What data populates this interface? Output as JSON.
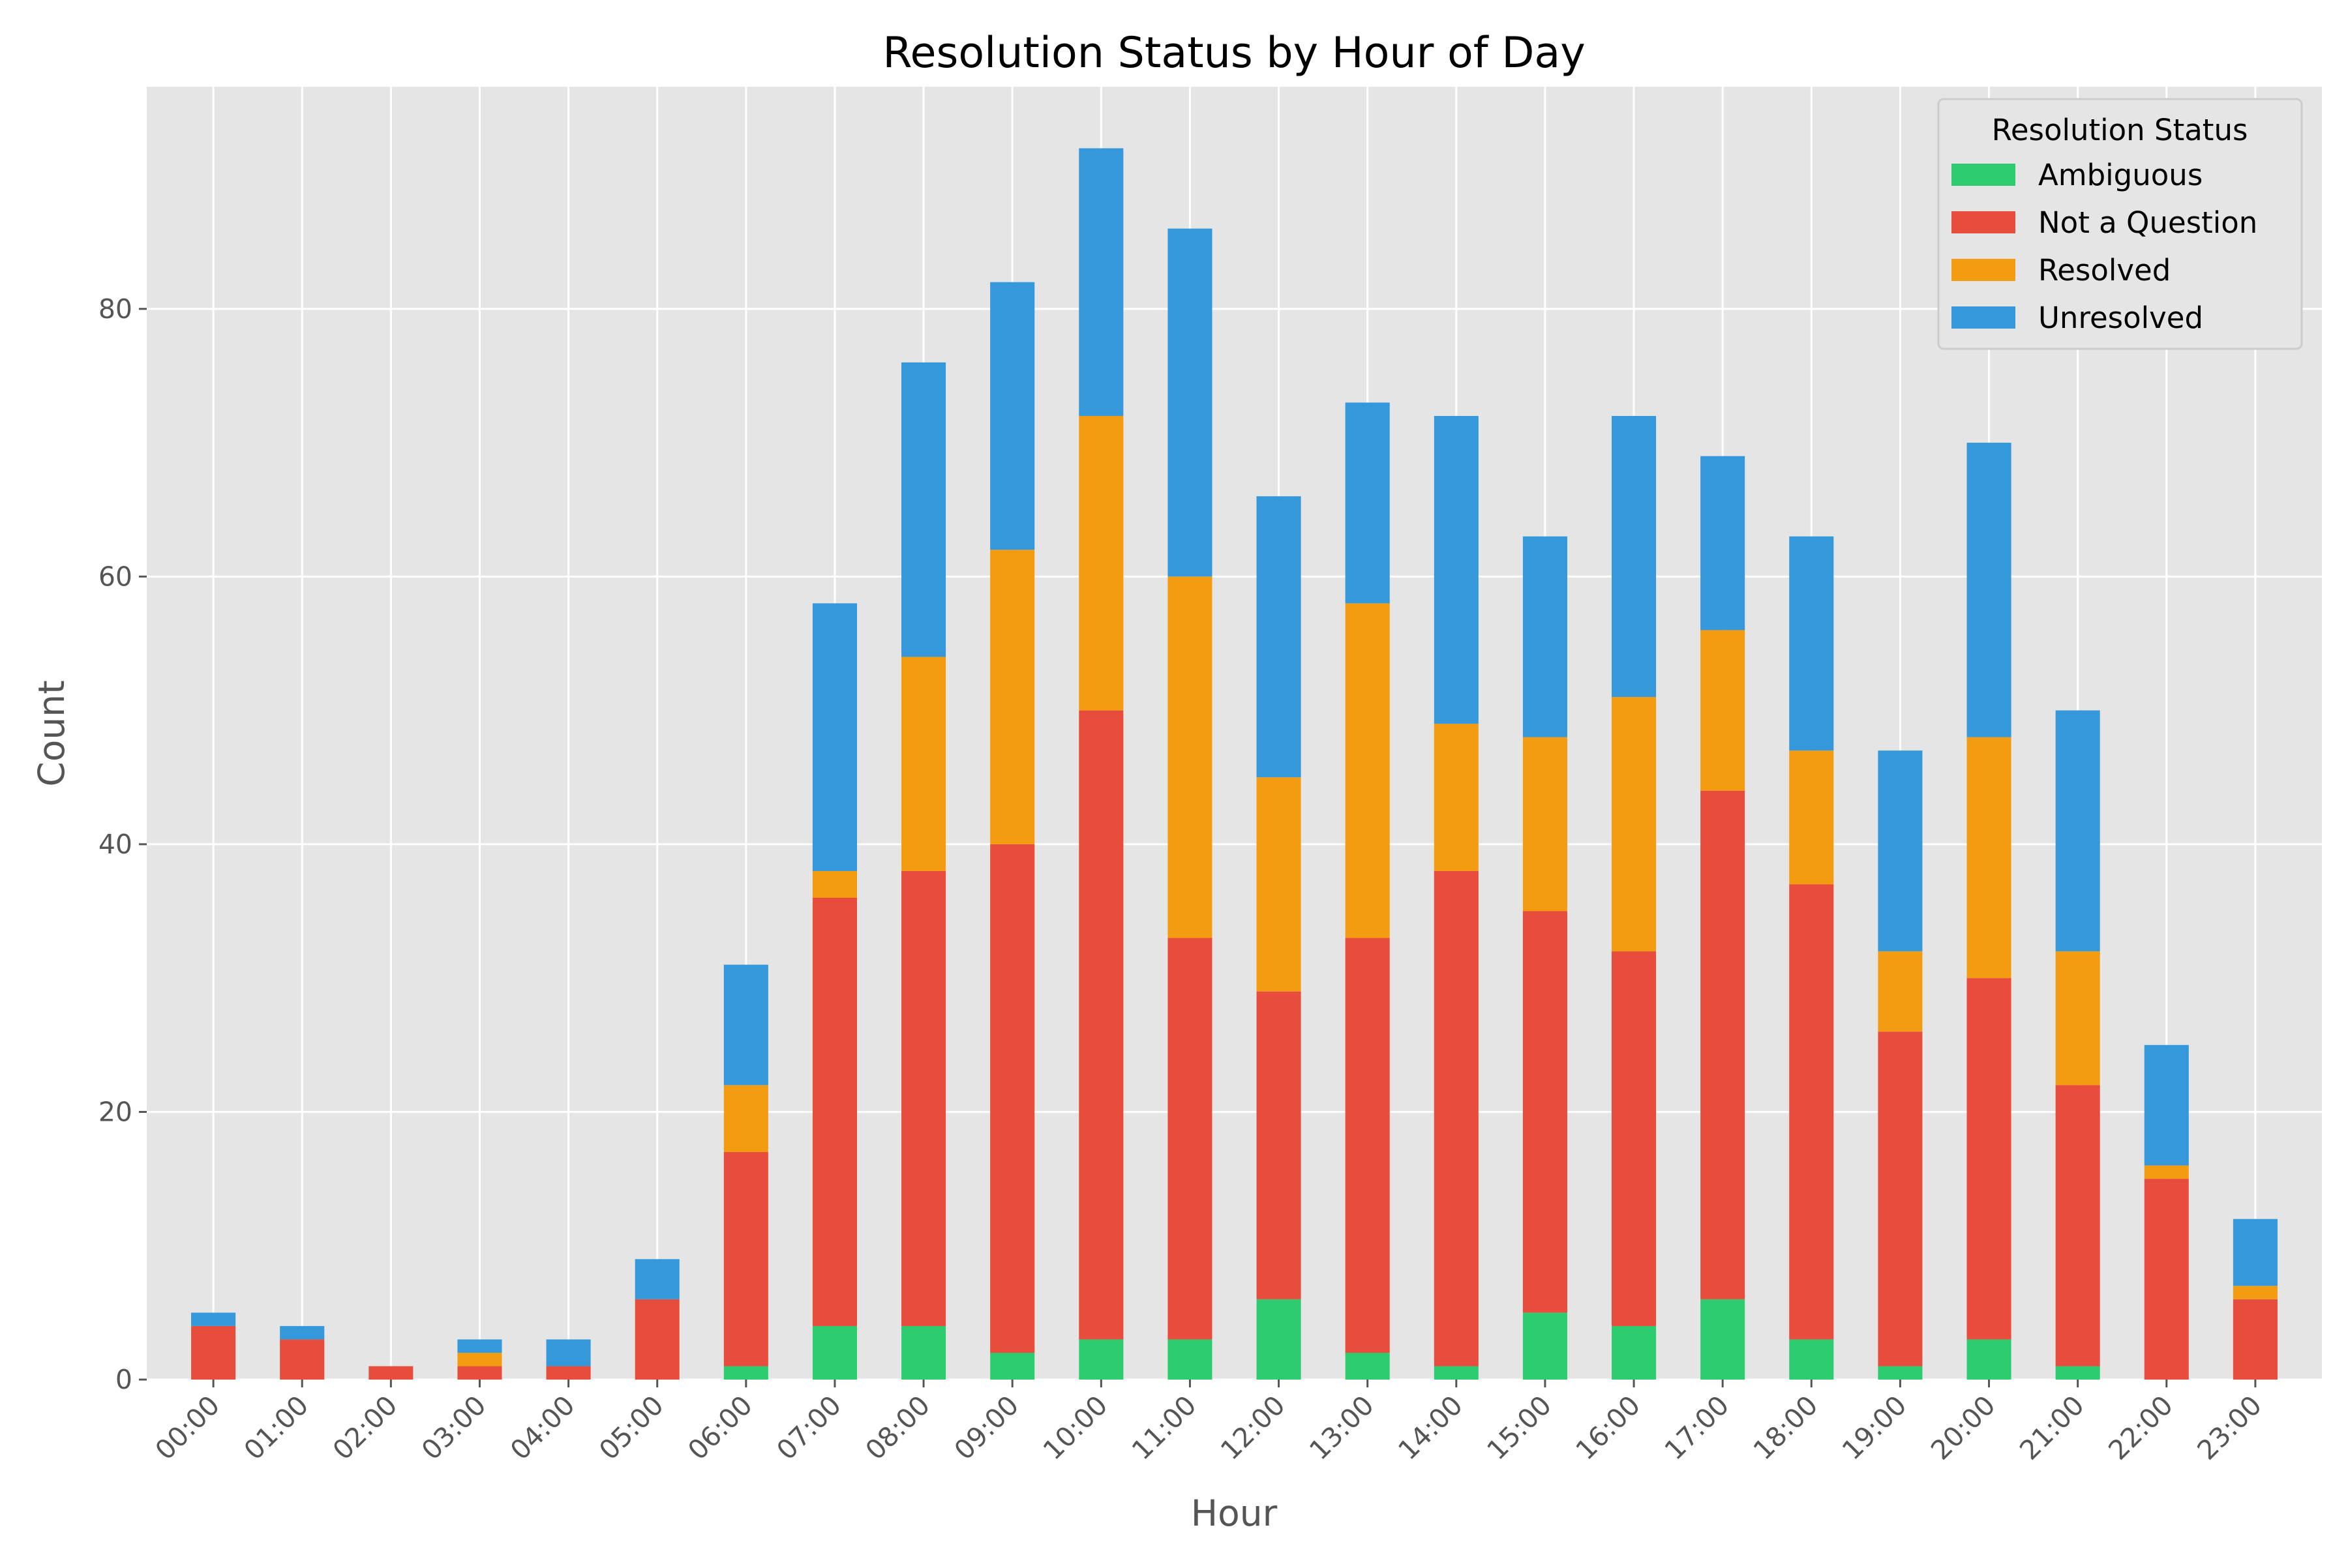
{
  "chart_data": {
    "type": "bar",
    "stacked": true,
    "title": "Resolution Status by Hour of Day",
    "xlabel": "Hour",
    "ylabel": "Count",
    "ylim": [
      0,
      96.6
    ],
    "yticks": [
      0,
      20,
      40,
      60,
      80
    ],
    "grid": true,
    "legend": {
      "title": "Resolution Status",
      "placement": "top-right"
    },
    "categories": [
      "00:00",
      "01:00",
      "02:00",
      "03:00",
      "04:00",
      "05:00",
      "06:00",
      "07:00",
      "08:00",
      "09:00",
      "10:00",
      "11:00",
      "12:00",
      "13:00",
      "14:00",
      "15:00",
      "16:00",
      "17:00",
      "18:00",
      "19:00",
      "20:00",
      "21:00",
      "22:00",
      "23:00"
    ],
    "series": [
      {
        "name": "Ambiguous",
        "color": "#2ecc71",
        "values": [
          0,
          0,
          0,
          0,
          0,
          0,
          1,
          4,
          4,
          2,
          3,
          3,
          6,
          2,
          1,
          5,
          4,
          6,
          3,
          1,
          3,
          1,
          0,
          0
        ]
      },
      {
        "name": "Not a Question",
        "color": "#e74c3c",
        "values": [
          4,
          3,
          1,
          1,
          1,
          6,
          16,
          32,
          34,
          38,
          47,
          30,
          23,
          31,
          37,
          30,
          28,
          38,
          34,
          25,
          27,
          21,
          15,
          6
        ]
      },
      {
        "name": "Resolved",
        "color": "#f39c12",
        "values": [
          0,
          0,
          0,
          1,
          0,
          0,
          5,
          2,
          16,
          22,
          22,
          27,
          16,
          25,
          11,
          13,
          19,
          12,
          10,
          6,
          18,
          10,
          1,
          1
        ]
      },
      {
        "name": "Unresolved",
        "color": "#3498db",
        "values": [
          1,
          1,
          0,
          1,
          2,
          3,
          9,
          20,
          22,
          20,
          20,
          26,
          21,
          15,
          23,
          15,
          21,
          13,
          16,
          15,
          22,
          18,
          9,
          5
        ]
      }
    ],
    "colors": {
      "plot_background": "#e5e5e5",
      "grid": "#ffffff"
    }
  }
}
